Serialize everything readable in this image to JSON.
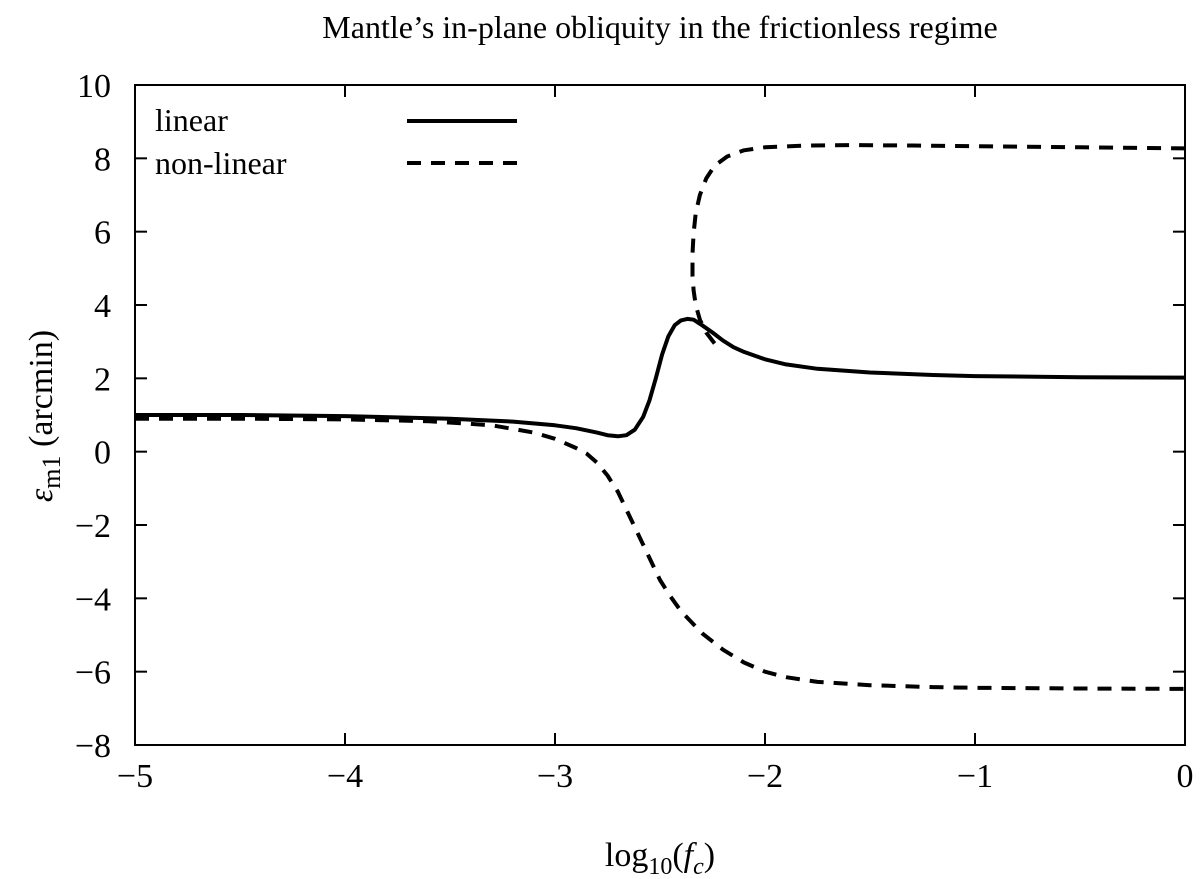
{
  "chart_data": {
    "type": "line",
    "title": "Mantle’s in-plane obliquity in the frictionless regime",
    "xlabel": {
      "base": "log",
      "sub": "10",
      "open": "(",
      "var": "f",
      "var_sub": "c",
      "close": ")"
    },
    "ylabel": {
      "symbol": "ε",
      "sub": "m1",
      "unit": "(arcmin)"
    },
    "xlim": [
      -5,
      0
    ],
    "ylim": [
      -8,
      10
    ],
    "x_ticks": [
      -5,
      -4,
      -3,
      -2,
      -1,
      0
    ],
    "x_tick_labels": [
      "−5",
      "−4",
      "−3",
      "−2",
      "−1",
      "0"
    ],
    "y_ticks": [
      -8,
      -6,
      -4,
      -2,
      0,
      2,
      4,
      6,
      8,
      10
    ],
    "y_tick_labels": [
      "−8",
      "−6",
      "−4",
      "−2",
      "0",
      "2",
      "4",
      "6",
      "8",
      "10"
    ],
    "grid": false,
    "legend_position": "top-left",
    "series": [
      {
        "name": "linear",
        "style": "solid",
        "color": "#000000",
        "points": [
          [
            -5.0,
            1.0
          ],
          [
            -4.5,
            1.0
          ],
          [
            -4.0,
            0.97
          ],
          [
            -3.5,
            0.9
          ],
          [
            -3.2,
            0.82
          ],
          [
            -3.0,
            0.72
          ],
          [
            -2.9,
            0.64
          ],
          [
            -2.8,
            0.52
          ],
          [
            -2.75,
            0.45
          ],
          [
            -2.7,
            0.42
          ],
          [
            -2.66,
            0.45
          ],
          [
            -2.62,
            0.6
          ],
          [
            -2.58,
            0.95
          ],
          [
            -2.55,
            1.4
          ],
          [
            -2.52,
            2.0
          ],
          [
            -2.49,
            2.65
          ],
          [
            -2.46,
            3.15
          ],
          [
            -2.43,
            3.45
          ],
          [
            -2.4,
            3.58
          ],
          [
            -2.37,
            3.62
          ],
          [
            -2.34,
            3.6
          ],
          [
            -2.3,
            3.45
          ],
          [
            -2.25,
            3.25
          ],
          [
            -2.2,
            3.03
          ],
          [
            -2.15,
            2.85
          ],
          [
            -2.1,
            2.72
          ],
          [
            -2.0,
            2.52
          ],
          [
            -1.9,
            2.38
          ],
          [
            -1.75,
            2.26
          ],
          [
            -1.5,
            2.16
          ],
          [
            -1.2,
            2.09
          ],
          [
            -1.0,
            2.06
          ],
          [
            -0.5,
            2.03
          ],
          [
            0.0,
            2.02
          ]
        ]
      },
      {
        "name": "non-linear",
        "style": "dashed",
        "color": "#000000",
        "branches": [
          [
            [
              -5.0,
              0.9
            ],
            [
              -4.5,
              0.9
            ],
            [
              -4.0,
              0.88
            ],
            [
              -3.6,
              0.83
            ],
            [
              -3.3,
              0.72
            ],
            [
              -3.1,
              0.52
            ],
            [
              -3.0,
              0.35
            ],
            [
              -2.9,
              0.1
            ],
            [
              -2.85,
              -0.05
            ],
            [
              -2.8,
              -0.3
            ],
            [
              -2.75,
              -0.65
            ],
            [
              -2.7,
              -1.1
            ],
            [
              -2.65,
              -1.7
            ],
            [
              -2.6,
              -2.3
            ],
            [
              -2.55,
              -2.9
            ],
            [
              -2.5,
              -3.5
            ],
            [
              -2.45,
              -3.95
            ],
            [
              -2.4,
              -4.35
            ],
            [
              -2.3,
              -4.95
            ],
            [
              -2.2,
              -5.4
            ],
            [
              -2.1,
              -5.75
            ],
            [
              -2.0,
              -6.0
            ],
            [
              -1.9,
              -6.15
            ],
            [
              -1.75,
              -6.28
            ],
            [
              -1.5,
              -6.37
            ],
            [
              -1.2,
              -6.42
            ],
            [
              -1.0,
              -6.44
            ],
            [
              -0.5,
              -6.46
            ],
            [
              0.0,
              -6.47
            ]
          ],
          [
            [
              -2.24,
              2.95
            ],
            [
              -2.28,
              3.25
            ],
            [
              -2.31,
              3.6
            ],
            [
              -2.33,
              4.0
            ],
            [
              -2.34,
              4.4
            ],
            [
              -2.345,
              4.8
            ],
            [
              -2.345,
              5.4
            ],
            [
              -2.34,
              5.95
            ],
            [
              -2.33,
              6.5
            ],
            [
              -2.31,
              7.0
            ],
            [
              -2.28,
              7.45
            ],
            [
              -2.24,
              7.8
            ],
            [
              -2.18,
              8.05
            ],
            [
              -2.1,
              8.22
            ],
            [
              -2.0,
              8.3
            ],
            [
              -1.8,
              8.35
            ],
            [
              -1.6,
              8.36
            ],
            [
              -1.3,
              8.35
            ],
            [
              -1.0,
              8.33
            ],
            [
              -0.5,
              8.3
            ],
            [
              0.0,
              8.27
            ]
          ]
        ]
      }
    ]
  }
}
